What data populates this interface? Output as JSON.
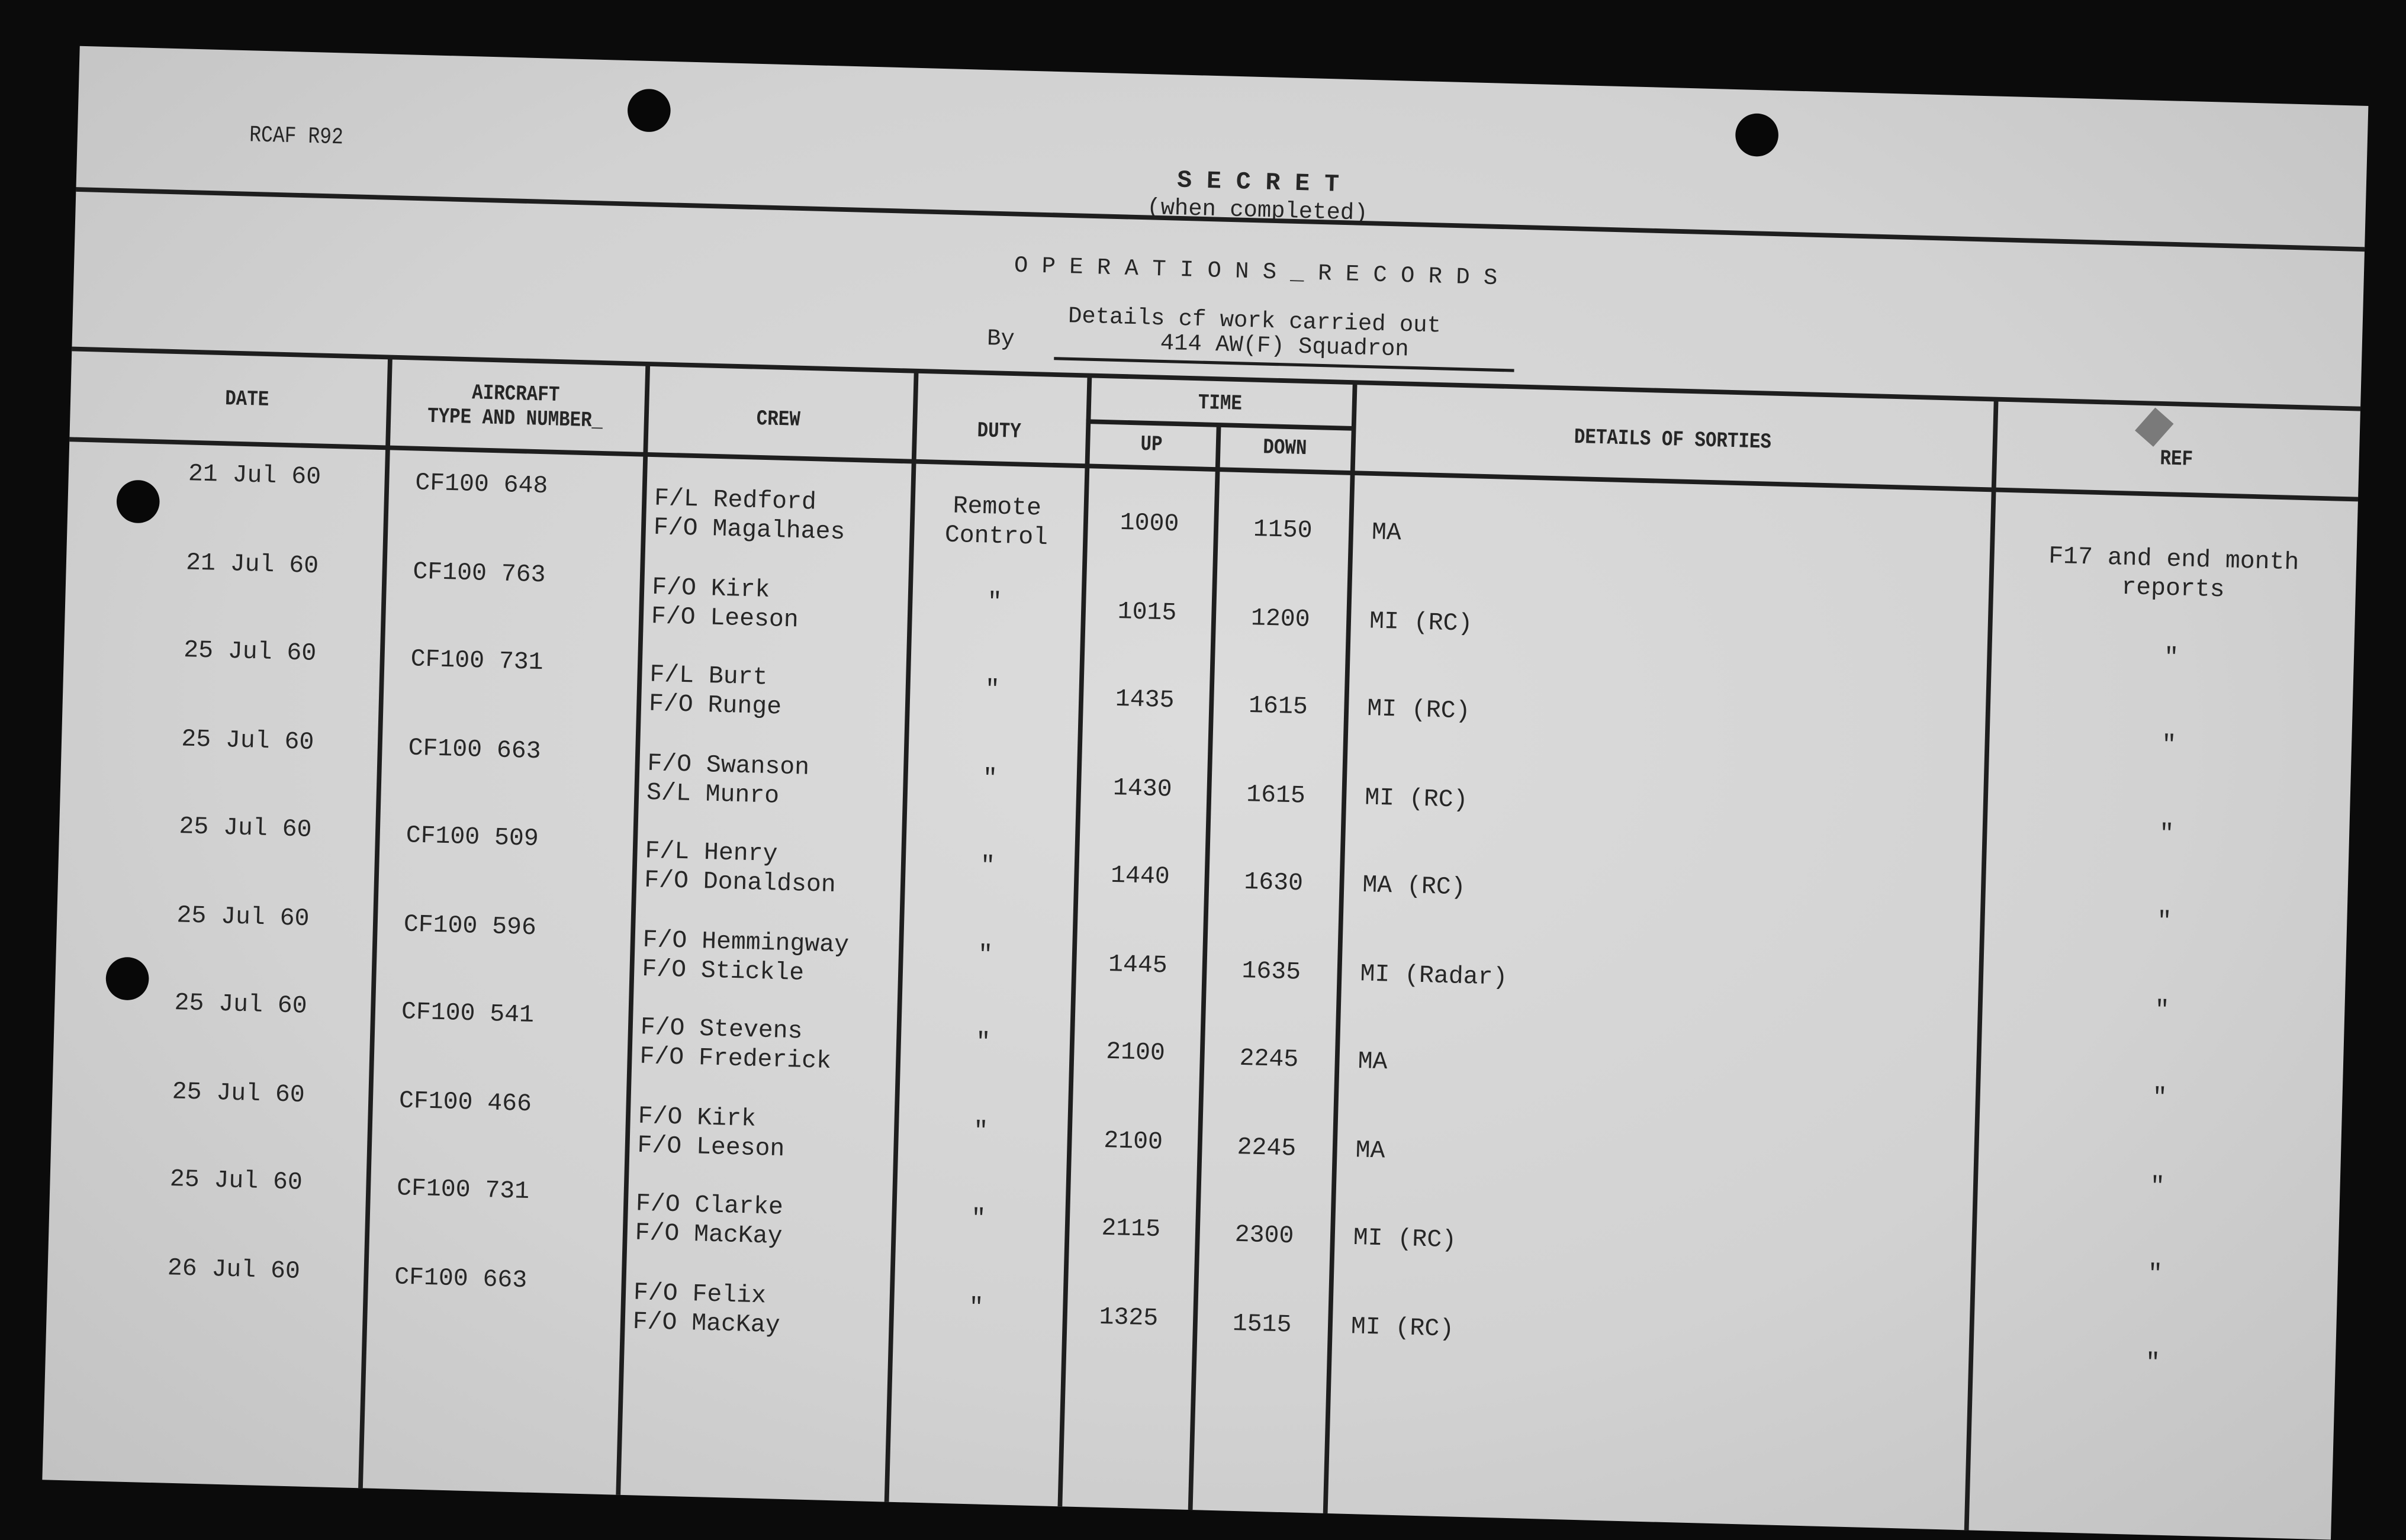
{
  "form_id": "RCAF R92",
  "classification": "S E C R E T",
  "classification_note": "(when completed)",
  "title": "O P E R A T I O N S _ R E C O R D S",
  "subtitle": "Details cf work carried out",
  "by_label": "By",
  "unit": "414 AW(F) Squadron",
  "headers": {
    "date": "DATE",
    "aircraft_1": "AIRCRAFT",
    "aircraft_2": "TYPE AND NUMBER_",
    "crew": "CREW",
    "duty": "DUTY",
    "time": "TIME",
    "up": "UP",
    "down": "DOWN",
    "details": "DETAILS  OF  SORTIES",
    "ref": "REF"
  },
  "rows": [
    {
      "date": "21 Jul 60",
      "aircraft": "CF100 648",
      "crew": [
        "F/L Redford",
        "F/O Magalhaes"
      ],
      "duty": [
        "Remote",
        "Control"
      ],
      "up": "1000",
      "down": "1150",
      "details": "MA",
      "ref": [
        "F17 and end month",
        "reports"
      ]
    },
    {
      "date": "21 Jul 60",
      "aircraft": "CF100 763",
      "crew": [
        "F/O Kirk",
        "F/O Leeson"
      ],
      "duty": [
        "\""
      ],
      "up": "1015",
      "down": "1200",
      "details": "MI (RC)",
      "ref": [
        "\""
      ]
    },
    {
      "date": "25 Jul 60",
      "aircraft": "CF100 731",
      "crew": [
        "F/L Burt",
        "F/O Runge"
      ],
      "duty": [
        "\""
      ],
      "up": "1435",
      "down": "1615",
      "details": "MI (RC)",
      "ref": [
        "\""
      ]
    },
    {
      "date": "25 Jul 60",
      "aircraft": "CF100 663",
      "crew": [
        "F/O Swanson",
        "S/L Munro"
      ],
      "duty": [
        "\""
      ],
      "up": "1430",
      "down": "1615",
      "details": "MI (RC)",
      "ref": [
        "\""
      ]
    },
    {
      "date": "25 Jul 60",
      "aircraft": "CF100 509",
      "crew": [
        "F/L Henry",
        "F/O Donaldson"
      ],
      "duty": [
        "\""
      ],
      "up": "1440",
      "down": "1630",
      "details": "MA (RC)",
      "ref": [
        "\""
      ]
    },
    {
      "date": "25 Jul 60",
      "aircraft": "CF100 596",
      "crew": [
        "F/O Hemmingway",
        "F/O Stickle"
      ],
      "duty": [
        "\""
      ],
      "up": "1445",
      "down": "1635",
      "details": "MI (Radar)",
      "ref": [
        "\""
      ]
    },
    {
      "date": "25 Jul 60",
      "aircraft": "CF100 541",
      "crew": [
        "F/O Stevens",
        "F/O Frederick"
      ],
      "duty": [
        "\""
      ],
      "up": "2100",
      "down": "2245",
      "details": "MA",
      "ref": [
        "\""
      ]
    },
    {
      "date": "25 Jul 60",
      "aircraft": "CF100 466",
      "crew": [
        "F/O Kirk",
        "F/O Leeson"
      ],
      "duty": [
        "\""
      ],
      "up": "2100",
      "down": "2245",
      "details": "MA",
      "ref": [
        "\""
      ]
    },
    {
      "date": "25 Jul 60",
      "aircraft": "CF100 731",
      "crew": [
        "F/O Clarke",
        "F/O MacKay"
      ],
      "duty": [
        "\""
      ],
      "up": "2115",
      "down": "2300",
      "details": "MI (RC)",
      "ref": [
        "\""
      ]
    },
    {
      "date": "26 Jul 60",
      "aircraft": "CF100 663",
      "crew": [
        "F/O Felix",
        "F/O MacKay"
      ],
      "duty": [
        "\""
      ],
      "up": "1325",
      "down": "1515",
      "details": "MI (RC)",
      "ref": [
        "\""
      ]
    }
  ],
  "colors": {
    "paper": "#d4d4d4",
    "ink": "#262626",
    "background": "#0b0b0b"
  }
}
